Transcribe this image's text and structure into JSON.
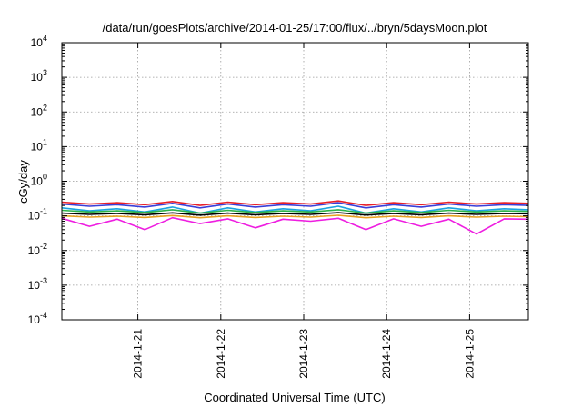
{
  "chart_data": {
    "type": "line",
    "title": "/data/run/goesPlots/archive/2014-01-25/17:00/flux/../bryn/5daysMoon.plot",
    "xlabel": "Coordinated Universal Time (UTC)",
    "ylabel": "cGy/day",
    "yscale": "log",
    "ylim": [
      0.0001,
      10000
    ],
    "xlim": [
      "2014-01-20T02:00",
      "2014-01-25T17:00"
    ],
    "grid": true,
    "x_ticks": [
      {
        "label": "2014-1-21",
        "value": "2014-01-21T00:00"
      },
      {
        "label": "2014-1-22",
        "value": "2014-01-22T00:00"
      },
      {
        "label": "2014-1-23",
        "value": "2014-01-23T00:00"
      },
      {
        "label": "2014-1-24",
        "value": "2014-01-24T00:00"
      },
      {
        "label": "2014-1-25",
        "value": "2014-01-25T00:00"
      }
    ],
    "y_ticks": [
      {
        "base": "10",
        "exp": "-4",
        "value": 0.0001
      },
      {
        "base": "10",
        "exp": "-3",
        "value": 0.001
      },
      {
        "base": "10",
        "exp": "-2",
        "value": 0.01
      },
      {
        "base": "10",
        "exp": "-1",
        "value": 0.1
      },
      {
        "base": "10",
        "exp": "0",
        "value": 1
      },
      {
        "base": "10",
        "exp": "1",
        "value": 10
      },
      {
        "base": "10",
        "exp": "2",
        "value": 100
      },
      {
        "base": "10",
        "exp": "3",
        "value": 1000
      },
      {
        "base": "10",
        "exp": "4",
        "value": 10000
      }
    ],
    "series": [
      {
        "color": "#e8202a",
        "x": [
          "2014-01-20T02:00",
          "2014-01-20T10:00",
          "2014-01-20T18:00",
          "2014-01-21T02:00",
          "2014-01-21T10:00",
          "2014-01-21T18:00",
          "2014-01-22T02:00",
          "2014-01-22T10:00",
          "2014-01-22T18:00",
          "2014-01-23T02:00",
          "2014-01-23T10:00",
          "2014-01-23T18:00",
          "2014-01-24T02:00",
          "2014-01-24T10:00",
          "2014-01-24T18:00",
          "2014-01-25T02:00",
          "2014-01-25T10:00",
          "2014-01-25T17:00"
        ],
        "y": [
          0.25,
          0.22,
          0.24,
          0.21,
          0.26,
          0.2,
          0.25,
          0.21,
          0.24,
          0.22,
          0.27,
          0.2,
          0.24,
          0.21,
          0.25,
          0.22,
          0.24,
          0.23
        ]
      },
      {
        "color": "#3a3fd8",
        "x": [
          "2014-01-20T02:00",
          "2014-01-20T10:00",
          "2014-01-20T18:00",
          "2014-01-21T02:00",
          "2014-01-21T10:00",
          "2014-01-21T18:00",
          "2014-01-22T02:00",
          "2014-01-22T10:00",
          "2014-01-22T18:00",
          "2014-01-23T02:00",
          "2014-01-23T10:00",
          "2014-01-23T18:00",
          "2014-01-24T02:00",
          "2014-01-24T10:00",
          "2014-01-24T18:00",
          "2014-01-25T02:00",
          "2014-01-25T10:00",
          "2014-01-25T17:00"
        ],
        "y": [
          0.22,
          0.19,
          0.21,
          0.18,
          0.23,
          0.17,
          0.22,
          0.18,
          0.21,
          0.19,
          0.24,
          0.17,
          0.21,
          0.18,
          0.22,
          0.19,
          0.21,
          0.2
        ]
      },
      {
        "color": "#1aa3e0",
        "x": [
          "2014-01-20T02:00",
          "2014-01-20T10:00",
          "2014-01-20T18:00",
          "2014-01-21T02:00",
          "2014-01-21T10:00",
          "2014-01-21T18:00",
          "2014-01-22T02:00",
          "2014-01-22T10:00",
          "2014-01-22T18:00",
          "2014-01-23T02:00",
          "2014-01-23T10:00",
          "2014-01-23T18:00",
          "2014-01-24T02:00",
          "2014-01-24T10:00",
          "2014-01-24T18:00",
          "2014-01-25T02:00",
          "2014-01-25T10:00",
          "2014-01-25T17:00"
        ],
        "y": [
          0.17,
          0.14,
          0.16,
          0.13,
          0.18,
          0.12,
          0.17,
          0.13,
          0.16,
          0.14,
          0.19,
          0.12,
          0.16,
          0.13,
          0.17,
          0.14,
          0.16,
          0.15
        ]
      },
      {
        "color": "#2db34a",
        "x": [
          "2014-01-20T02:00",
          "2014-01-20T10:00",
          "2014-01-20T18:00",
          "2014-01-21T02:00",
          "2014-01-21T10:00",
          "2014-01-21T18:00",
          "2014-01-22T02:00",
          "2014-01-22T10:00",
          "2014-01-22T18:00",
          "2014-01-23T02:00",
          "2014-01-23T10:00",
          "2014-01-23T18:00",
          "2014-01-24T02:00",
          "2014-01-24T10:00",
          "2014-01-24T18:00",
          "2014-01-25T02:00",
          "2014-01-25T10:00",
          "2014-01-25T17:00"
        ],
        "y": [
          0.145,
          0.13,
          0.14,
          0.125,
          0.15,
          0.12,
          0.145,
          0.125,
          0.14,
          0.13,
          0.15,
          0.12,
          0.14,
          0.125,
          0.145,
          0.13,
          0.14,
          0.135
        ]
      },
      {
        "color": "#000000",
        "x": [
          "2014-01-20T02:00",
          "2014-01-20T10:00",
          "2014-01-20T18:00",
          "2014-01-21T02:00",
          "2014-01-21T10:00",
          "2014-01-21T18:00",
          "2014-01-22T02:00",
          "2014-01-22T10:00",
          "2014-01-22T18:00",
          "2014-01-23T02:00",
          "2014-01-23T10:00",
          "2014-01-23T18:00",
          "2014-01-24T02:00",
          "2014-01-24T10:00",
          "2014-01-24T18:00",
          "2014-01-25T02:00",
          "2014-01-25T10:00",
          "2014-01-25T17:00"
        ],
        "y": [
          0.12,
          0.11,
          0.118,
          0.108,
          0.122,
          0.105,
          0.12,
          0.108,
          0.118,
          0.11,
          0.124,
          0.106,
          0.118,
          0.108,
          0.12,
          0.11,
          0.118,
          0.115
        ]
      },
      {
        "color": "#e8a020",
        "x": [
          "2014-01-20T02:00",
          "2014-01-20T10:00",
          "2014-01-20T18:00",
          "2014-01-21T02:00",
          "2014-01-21T10:00",
          "2014-01-21T18:00",
          "2014-01-22T02:00",
          "2014-01-22T10:00",
          "2014-01-22T18:00",
          "2014-01-23T02:00",
          "2014-01-23T10:00",
          "2014-01-23T18:00",
          "2014-01-24T02:00",
          "2014-01-24T10:00",
          "2014-01-24T18:00",
          "2014-01-25T02:00",
          "2014-01-25T10:00",
          "2014-01-25T17:00"
        ],
        "y": [
          0.1,
          0.092,
          0.098,
          0.09,
          0.102,
          0.088,
          0.1,
          0.09,
          0.098,
          0.092,
          0.104,
          0.088,
          0.098,
          0.09,
          0.1,
          0.092,
          0.098,
          0.095
        ]
      },
      {
        "color": "#ee1ee0",
        "x": [
          "2014-01-20T02:00",
          "2014-01-20T10:00",
          "2014-01-20T18:00",
          "2014-01-21T02:00",
          "2014-01-21T10:00",
          "2014-01-21T18:00",
          "2014-01-22T02:00",
          "2014-01-22T10:00",
          "2014-01-22T18:00",
          "2014-01-23T02:00",
          "2014-01-23T10:00",
          "2014-01-23T18:00",
          "2014-01-24T02:00",
          "2014-01-24T10:00",
          "2014-01-24T18:00",
          "2014-01-25T02:00",
          "2014-01-25T10:00",
          "2014-01-25T17:00"
        ],
        "y": [
          0.085,
          0.05,
          0.08,
          0.04,
          0.088,
          0.06,
          0.082,
          0.045,
          0.08,
          0.07,
          0.085,
          0.04,
          0.082,
          0.05,
          0.08,
          0.03,
          0.082,
          0.08
        ]
      }
    ]
  }
}
